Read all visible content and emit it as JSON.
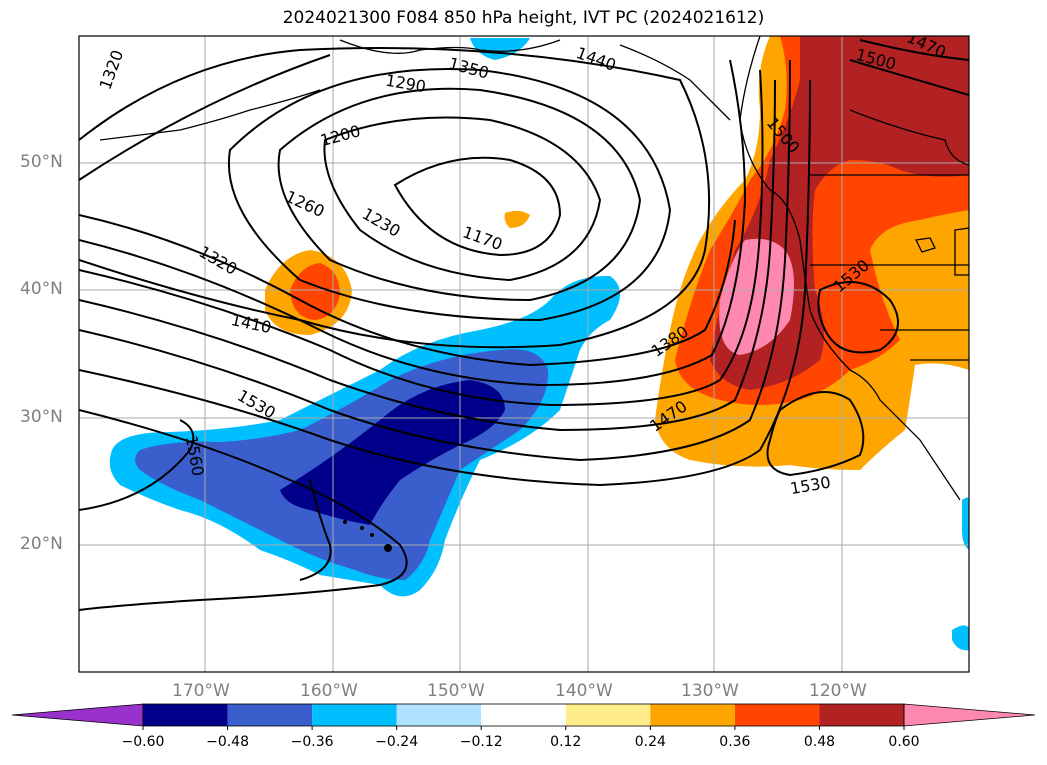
{
  "title": "2024021300 F084 850 hPa height, IVT PC (2024021612)",
  "lat_labels": [
    "50°N",
    "40°N",
    "30°N",
    "20°N"
  ],
  "lon_labels": [
    "170°W",
    "160°W",
    "150°W",
    "140°W",
    "130°W",
    "120°W"
  ],
  "contour_labels": [
    "1320",
    "1290",
    "1350",
    "1440",
    "1470",
    "1500",
    "1200",
    "1500",
    "1260",
    "1230",
    "1170",
    "1320",
    "1530",
    "1410",
    "1380",
    "1470",
    "1530",
    "1560",
    "1530"
  ],
  "colorbar": {
    "ticks": [
      "−0.60",
      "−0.48",
      "−0.36",
      "−0.24",
      "−0.12",
      "0.12",
      "0.24",
      "0.36",
      "0.48",
      "0.60"
    ],
    "colors": [
      "#9932cc",
      "#00008b",
      "#3a5fcd",
      "#00bfff",
      "#b0e2ff",
      "#ffffff",
      "#ffec8b",
      "#ffa500",
      "#ff4500",
      "#b22222",
      "#ff88b0"
    ]
  }
}
